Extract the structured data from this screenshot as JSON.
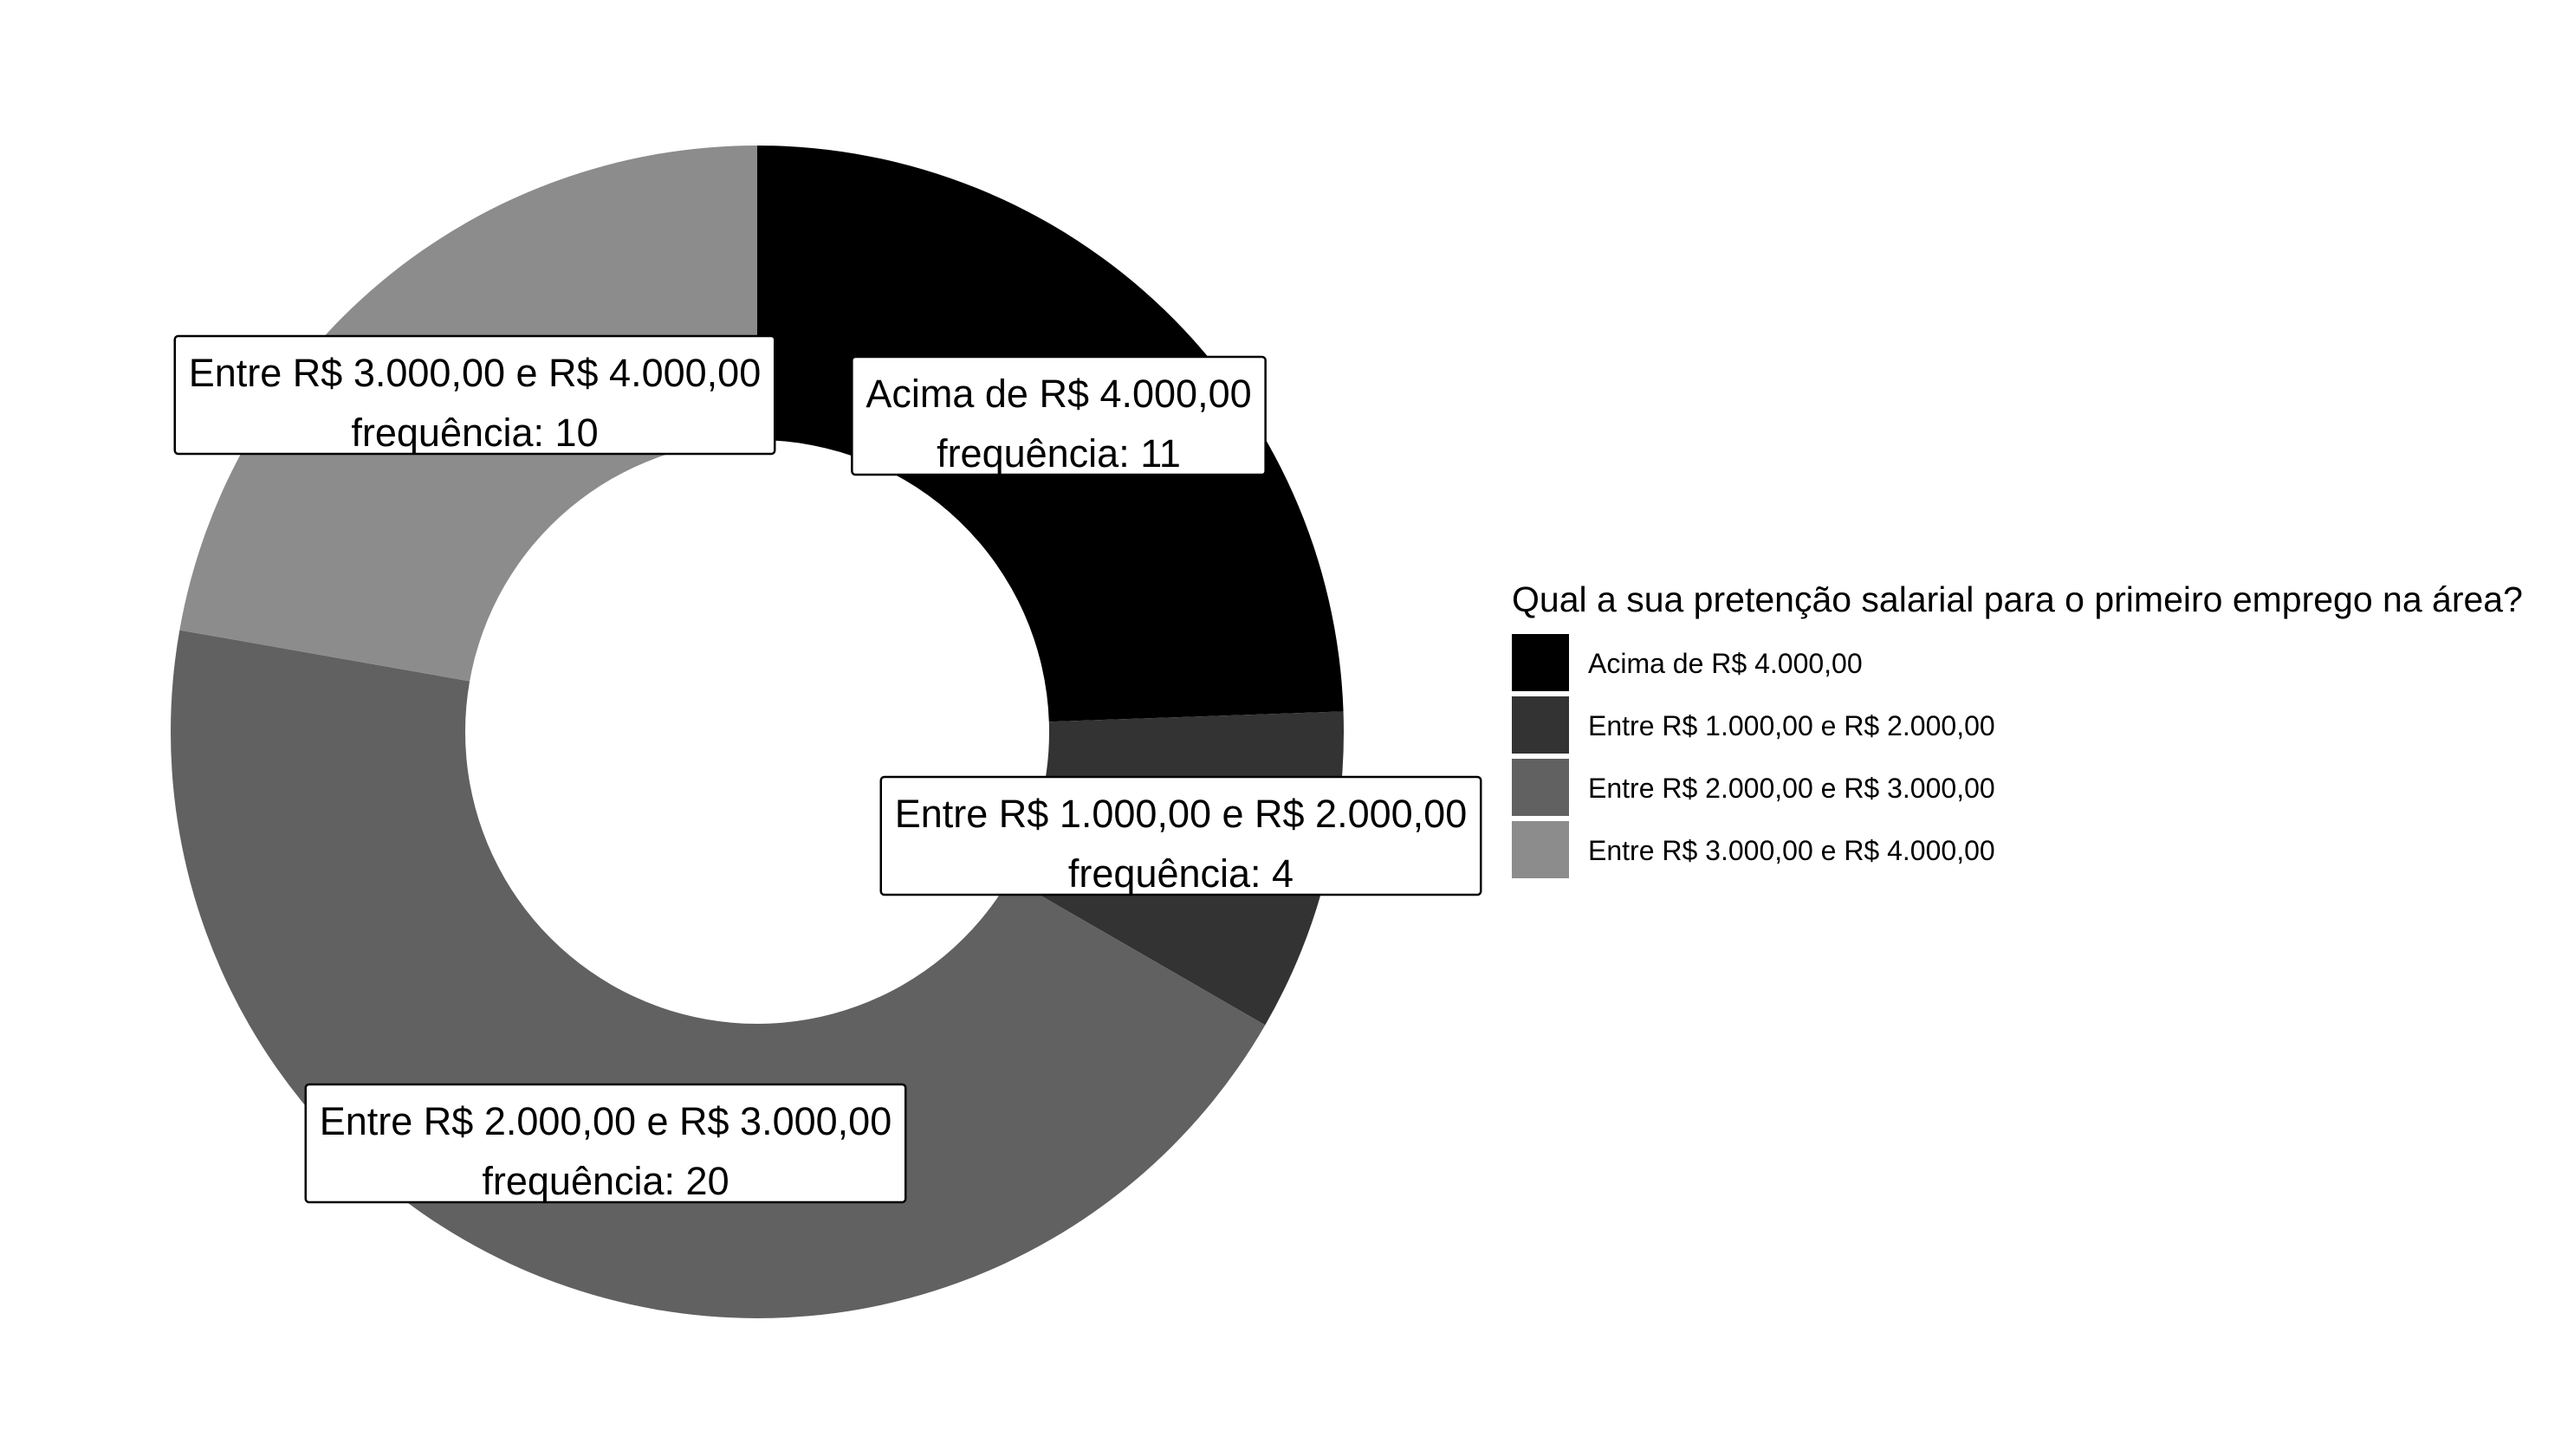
{
  "chart_data": {
    "type": "pie",
    "variant": "donut",
    "legend_title": "Qual a sua pretenção salarial para o primeiro emprego na área?",
    "legend_position": "right",
    "frequency_label": "frequência",
    "categories": [
      "Acima de R$ 4.000,00",
      "Entre R$ 1.000,00 e R$ 2.000,00",
      "Entre R$ 2.000,00 e R$ 3.000,00",
      "Entre R$ 3.000,00 e R$ 4.000,00"
    ],
    "values": [
      11,
      4,
      20,
      10
    ],
    "colors": [
      "#000000",
      "#333333",
      "#616161",
      "#8c8c8c"
    ]
  }
}
